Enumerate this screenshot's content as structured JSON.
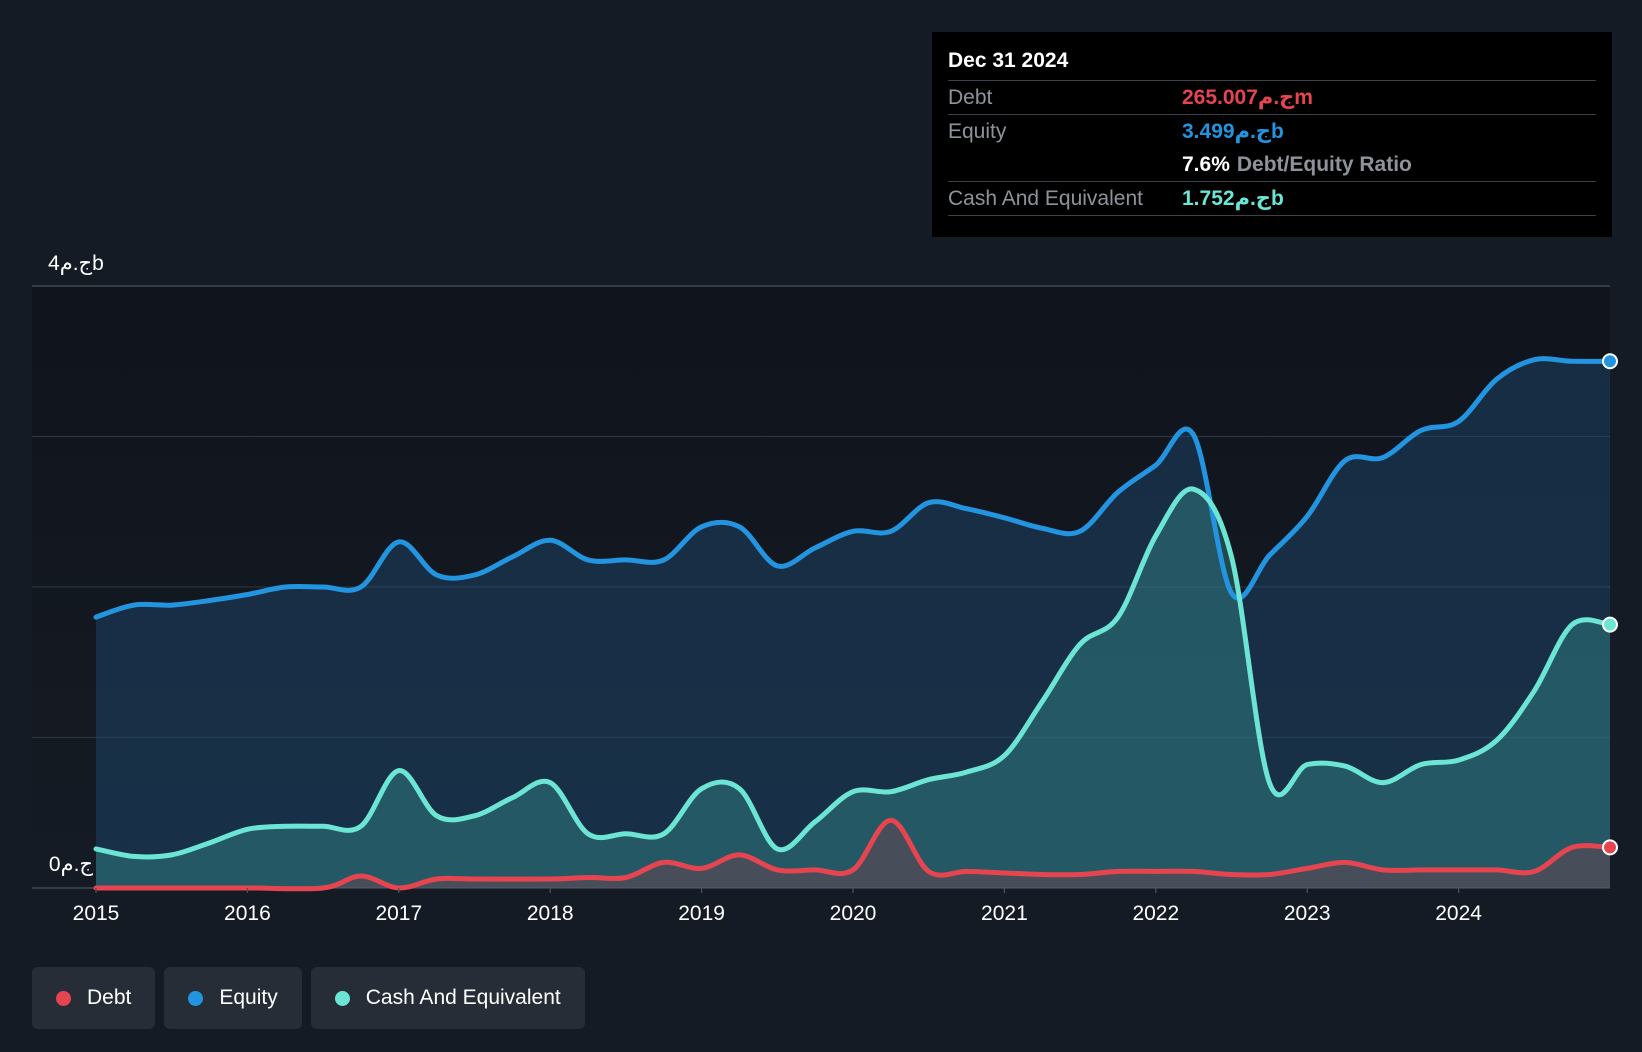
{
  "tooltip": {
    "date": "Dec 31 2024",
    "rows": {
      "debt": {
        "label": "Debt",
        "value": "265.007ج.مm"
      },
      "equity": {
        "label": "Equity",
        "value": "3.499ج.مb"
      },
      "ratio": {
        "value": "7.6%",
        "label": "Debt/Equity Ratio"
      },
      "cash": {
        "label": "Cash And Equivalent",
        "value": "1.752ج.مb"
      }
    }
  },
  "legend": [
    {
      "label": "Debt",
      "color": "#e64550"
    },
    {
      "label": "Equity",
      "color": "#2394df"
    },
    {
      "label": "Cash And Equivalent",
      "color": "#6ce5d4"
    }
  ],
  "chart_data": {
    "type": "area",
    "y_axis": {
      "top_label": "4ج.مb",
      "bottom_label": "0ج.م",
      "ylim": [
        0,
        4
      ],
      "unit": "ج.مb",
      "gridlines": [
        0,
        1,
        2,
        3,
        4
      ]
    },
    "x_axis": {
      "ticks": [
        "2015",
        "2016",
        "2017",
        "2018",
        "2019",
        "2020",
        "2021",
        "2022",
        "2023",
        "2024"
      ],
      "range": [
        2015.0,
        2025.0
      ]
    },
    "series": [
      {
        "name": "Equity",
        "color": "#2394df",
        "x": [
          2015.0,
          2015.25,
          2015.5,
          2015.75,
          2016.0,
          2016.25,
          2016.5,
          2016.75,
          2017.0,
          2017.25,
          2017.5,
          2017.75,
          2018.0,
          2018.25,
          2018.5,
          2018.75,
          2019.0,
          2019.25,
          2019.5,
          2019.75,
          2020.0,
          2020.25,
          2020.5,
          2020.75,
          2021.0,
          2021.25,
          2021.5,
          2021.75,
          2022.0,
          2022.25,
          2022.5,
          2022.75,
          2023.0,
          2023.25,
          2023.5,
          2023.75,
          2024.0,
          2024.25,
          2024.5,
          2024.75,
          2025.0
        ],
        "y": [
          1.8,
          1.88,
          1.88,
          1.91,
          1.95,
          2.0,
          2.0,
          2.0,
          2.3,
          2.08,
          2.08,
          2.2,
          2.31,
          2.18,
          2.18,
          2.18,
          2.4,
          2.4,
          2.14,
          2.26,
          2.37,
          2.37,
          2.56,
          2.52,
          2.46,
          2.39,
          2.37,
          2.63,
          2.81,
          3.01,
          1.96,
          2.21,
          2.47,
          2.84,
          2.86,
          3.04,
          3.1,
          3.38,
          3.51,
          3.5,
          3.5
        ]
      },
      {
        "name": "Cash And Equivalent",
        "color": "#6ce5d4",
        "x": [
          2015.0,
          2015.25,
          2015.5,
          2015.75,
          2016.0,
          2016.25,
          2016.5,
          2016.75,
          2017.0,
          2017.25,
          2017.5,
          2017.75,
          2018.0,
          2018.25,
          2018.5,
          2018.75,
          2019.0,
          2019.25,
          2019.5,
          2019.75,
          2020.0,
          2020.25,
          2020.5,
          2020.75,
          2021.0,
          2021.25,
          2021.5,
          2021.75,
          2022.0,
          2022.25,
          2022.5,
          2022.75,
          2023.0,
          2023.25,
          2023.5,
          2023.75,
          2024.0,
          2024.25,
          2024.5,
          2024.75,
          2025.0
        ],
        "y": [
          0.26,
          0.21,
          0.22,
          0.3,
          0.39,
          0.41,
          0.41,
          0.41,
          0.78,
          0.48,
          0.48,
          0.6,
          0.7,
          0.36,
          0.36,
          0.36,
          0.66,
          0.66,
          0.26,
          0.44,
          0.64,
          0.64,
          0.72,
          0.77,
          0.88,
          1.24,
          1.62,
          1.8,
          2.34,
          2.65,
          2.2,
          0.7,
          0.82,
          0.81,
          0.7,
          0.82,
          0.85,
          0.98,
          1.31,
          1.75,
          1.75
        ]
      },
      {
        "name": "Debt",
        "color": "#e64550",
        "x": [
          2015.0,
          2015.5,
          2016.0,
          2016.5,
          2016.75,
          2017.0,
          2017.25,
          2017.5,
          2018.0,
          2018.25,
          2018.5,
          2018.75,
          2019.0,
          2019.25,
          2019.5,
          2019.75,
          2020.0,
          2020.25,
          2020.5,
          2020.75,
          2021.0,
          2021.25,
          2021.5,
          2021.75,
          2022.0,
          2022.25,
          2022.5,
          2022.75,
          2023.0,
          2023.25,
          2023.5,
          2023.75,
          2024.0,
          2024.25,
          2024.5,
          2024.75,
          2025.0
        ],
        "y": [
          0.0,
          0.0,
          0.0,
          0.0,
          0.08,
          0.0,
          0.06,
          0.06,
          0.06,
          0.07,
          0.07,
          0.17,
          0.13,
          0.22,
          0.12,
          0.12,
          0.12,
          0.45,
          0.11,
          0.11,
          0.1,
          0.09,
          0.09,
          0.11,
          0.11,
          0.11,
          0.09,
          0.09,
          0.13,
          0.17,
          0.12,
          0.12,
          0.12,
          0.12,
          0.11,
          0.27,
          0.27
        ]
      }
    ]
  }
}
